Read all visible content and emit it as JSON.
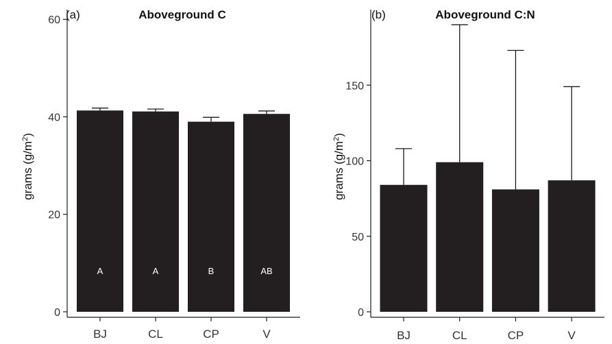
{
  "chart_data": [
    {
      "type": "bar",
      "panel_label": "(a)",
      "title": "Aboveground C",
      "ylabel": "grams (g/m2)",
      "ylabel_main": "grams (g/m",
      "ylabel_sup": "2",
      "ylabel_end": ")",
      "categories": [
        "BJ",
        "CL",
        "CP",
        "V"
      ],
      "values": [
        41.3,
        41.1,
        39.0,
        40.6
      ],
      "error_upper": [
        41.8,
        41.6,
        39.9,
        41.2
      ],
      "letters": [
        "A",
        "A",
        "B",
        "AB"
      ],
      "ylim": [
        0,
        62
      ],
      "yticks": [
        0,
        20,
        40,
        60
      ],
      "color": "#231f20"
    },
    {
      "type": "bar",
      "panel_label": "(b)",
      "title": "Aboveground C:N",
      "ylabel": "grams (g/m2)",
      "ylabel_main": "grams (g/m",
      "ylabel_sup": "2",
      "ylabel_end": ")",
      "categories": [
        "BJ",
        "CL",
        "CP",
        "V"
      ],
      "values": [
        84,
        99,
        81,
        87
      ],
      "error_upper": [
        108,
        190,
        173,
        149
      ],
      "letters": [],
      "ylim": [
        0,
        200
      ],
      "yticks": [
        0,
        50,
        100,
        150
      ],
      "color": "#231f20"
    }
  ]
}
